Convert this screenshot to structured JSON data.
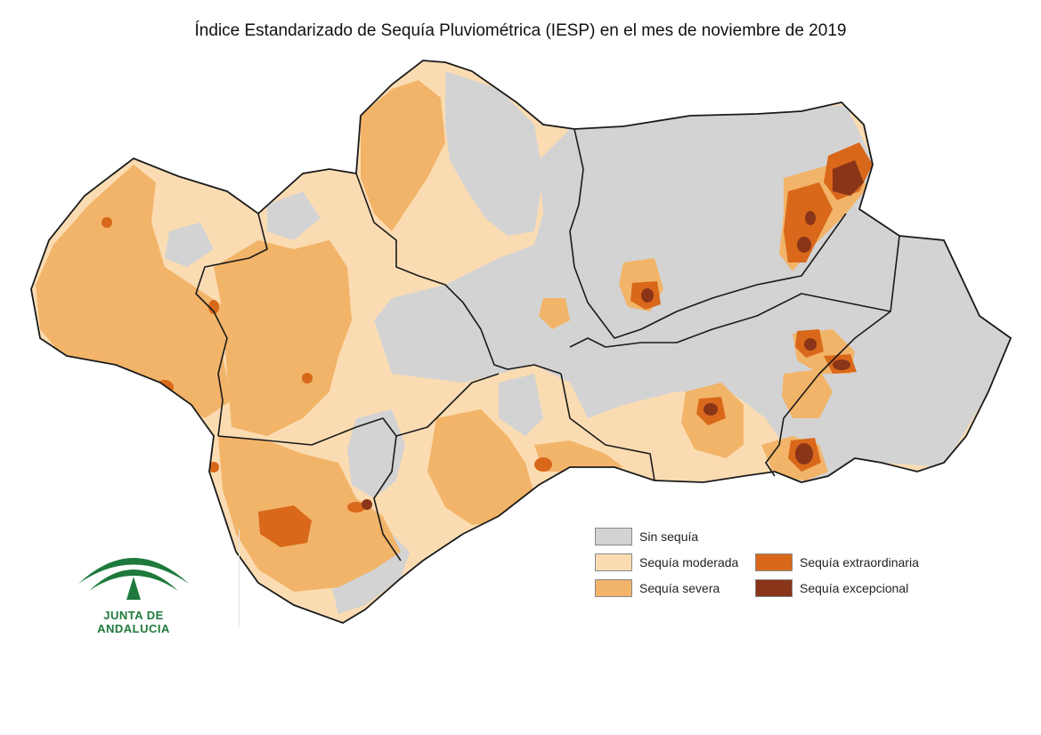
{
  "title": "Índice Estandarizado de Sequía Pluviométrica (IESP) en el mes de noviembre de 2019",
  "colors": {
    "sin_sequia": "#d3d3d3",
    "moderada": "#fbdcb2",
    "severa": "#f2b469",
    "extraordinaria": "#d9681a",
    "excepcional": "#8a3418",
    "border": "#1a1a1a"
  },
  "legend": [
    {
      "label": "Sin sequía",
      "color": "#d3d3d3"
    },
    {
      "label": "Sequía moderada",
      "color": "#fbdcb2"
    },
    {
      "label": "Sequía severa",
      "color": "#f2b469"
    },
    {
      "label": "Sequía extraordinaria",
      "color": "#d9681a"
    },
    {
      "label": "Sequía excepcional",
      "color": "#8a3418"
    }
  ],
  "logo": {
    "text": "JUNTA DE ANDALUCIA",
    "icon": "junta-andalucia-emblem-icon"
  }
}
